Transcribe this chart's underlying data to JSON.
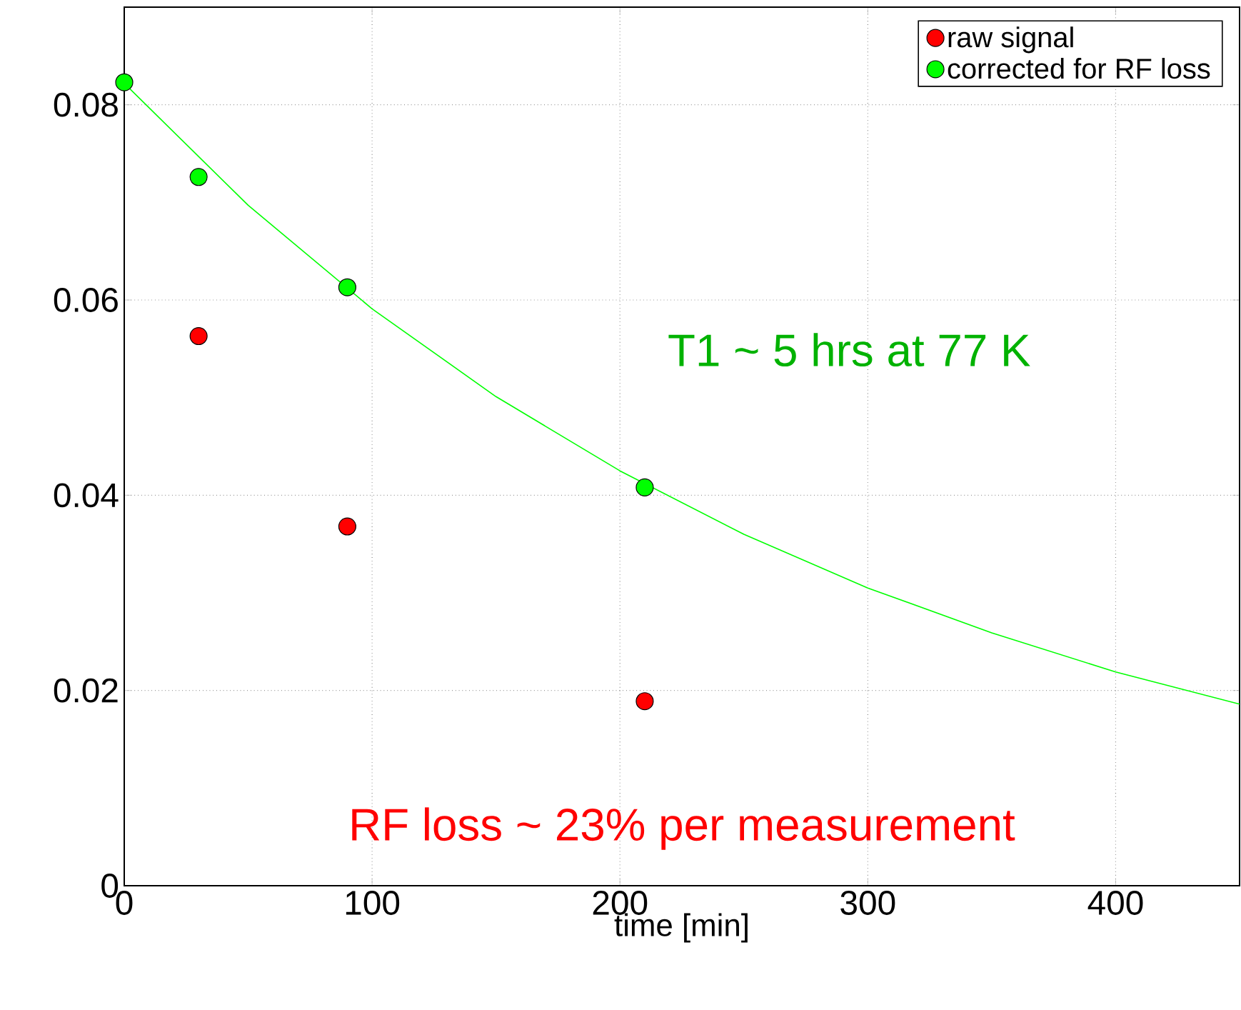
{
  "chart_data": {
    "type": "scatter",
    "xlabel": "time [min]",
    "xlim": [
      0,
      450
    ],
    "ylim": [
      0,
      0.09
    ],
    "xticks": [
      0,
      100,
      200,
      300,
      400
    ],
    "yticks": [
      0,
      0.02,
      0.04,
      0.06,
      0.08
    ],
    "grid": true,
    "legend": "top right",
    "series": [
      {
        "name": "raw signal",
        "color": "#ff0000",
        "marker": "circle",
        "x": [
          30,
          90,
          210
        ],
        "values": [
          0.0563,
          0.0368,
          0.0189
        ]
      },
      {
        "name": "corrected for RF loss",
        "color": "#00ff00",
        "marker": "circle",
        "x": [
          0,
          30,
          90,
          210
        ],
        "values": [
          0.0823,
          0.0726,
          0.0613,
          0.0408
        ]
      },
      {
        "type": "line",
        "color": "#00ff00",
        "marker": "none",
        "x": [
          0,
          50,
          100,
          150,
          200,
          250,
          300,
          350,
          400,
          450
        ],
        "values": [
          0.0822,
          0.0697,
          0.0591,
          0.0501,
          0.0425,
          0.036,
          0.0305,
          0.0259,
          0.0219,
          0.0186
        ]
      }
    ],
    "annotations": [
      "T1 ~ 5 hrs at 77 K",
      "RF loss ~ 23% per measurement"
    ]
  }
}
